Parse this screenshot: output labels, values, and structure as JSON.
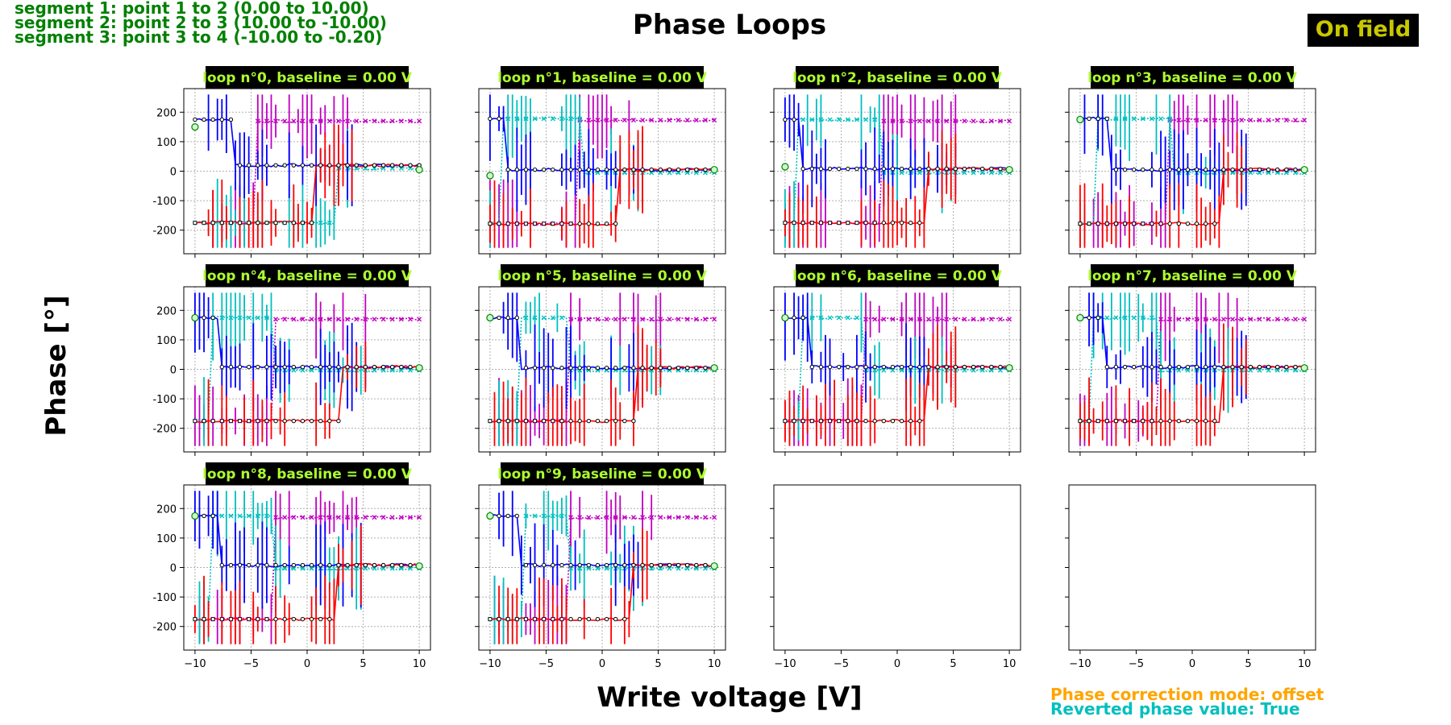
{
  "figure": {
    "title": "Phase Loops",
    "xlabel": "Write voltage [V]",
    "ylabel": "Phase [°]",
    "badge": "On field",
    "segments": [
      "segment 1: point 1 to 2 (0.00 to 10.00)",
      "segment 2: point 2 to 3 (10.00 to -10.00)",
      "segment 3: point 3 to 4 (-10.00 to -0.20)"
    ],
    "footer": [
      "Phase correction mode: offset",
      "Reverted phase value: True"
    ]
  },
  "colors": {
    "segment_text": "#008000",
    "badge_bg": "#000000",
    "badge_text": "#c8c800",
    "subtitle_text": "#adff2f",
    "footer_mode": "#ffa500",
    "footer_revert": "#00bfbf",
    "on_seg1": "#ff0000",
    "on_seg2": "#0000ff",
    "on_seg3": "#0000ff",
    "off_seg1": "#c000c0",
    "off_seg2": "#00bfbf",
    "off_seg3": "#00bfbf",
    "avg_line": "#000080"
  },
  "chart_data": {
    "type": "line",
    "xlim": [
      -11,
      11
    ],
    "ylim": [
      -280,
      280
    ],
    "xticks": [
      -10,
      -5,
      0,
      5,
      10
    ],
    "yticks": [
      200,
      100,
      0,
      -100,
      -200
    ],
    "grid": true,
    "rows": 3,
    "cols": 4,
    "loops": [
      {
        "label": "loop n°0, baseline = 0.00 V",
        "hi": 175,
        "lo": -175,
        "on_up": 0.5,
        "on_down": -6.5,
        "off_up": -4.5,
        "off_down": 2.5,
        "tail_on": 20,
        "tail_off": 10,
        "start": 150
      },
      {
        "label": "loop n°1, baseline = 0.00 V",
        "hi": 178,
        "lo": -178,
        "on_up": 1.5,
        "on_down": -8.5,
        "off_up": -2.0,
        "off_down": -9.0,
        "tail_on": 5,
        "tail_off": -5,
        "start": -15
      },
      {
        "label": "loop n°2, baseline = 0.00 V",
        "hi": 175,
        "lo": -175,
        "on_up": 2.7,
        "on_down": -8.5,
        "off_up": -1.5,
        "off_down": -9.2,
        "tail_on": 8,
        "tail_off": -5,
        "start": 15
      },
      {
        "label": "loop n°3, baseline = 0.00 V",
        "hi": 178,
        "lo": -178,
        "on_up": 2.5,
        "on_down": -7.5,
        "off_up": -2.0,
        "off_down": -8.8,
        "tail_on": 5,
        "tail_off": -5,
        "start": 175
      },
      {
        "label": "loop n°4, baseline = 0.00 V",
        "hi": 175,
        "lo": -175,
        "on_up": 3.0,
        "on_down": -8.0,
        "off_up": -3.0,
        "off_down": -8.5,
        "tail_on": 8,
        "tail_off": -3,
        "start": 175
      },
      {
        "label": "loop n°5, baseline = 0.00 V",
        "hi": 175,
        "lo": -175,
        "on_up": 3.0,
        "on_down": -7.5,
        "off_up": -3.0,
        "off_down": -7.5,
        "tail_on": 5,
        "tail_off": -3,
        "start": 175
      },
      {
        "label": "loop n°6, baseline = 0.00 V",
        "hi": 175,
        "lo": -175,
        "on_up": 2.7,
        "on_down": -8.0,
        "off_up": -3.0,
        "off_down": -8.5,
        "tail_on": 8,
        "tail_off": -3,
        "start": 175
      },
      {
        "label": "loop n°7, baseline = 0.00 V",
        "hi": 175,
        "lo": -175,
        "on_up": 2.5,
        "on_down": -8.0,
        "off_up": -3.0,
        "off_down": -9.0,
        "tail_on": 8,
        "tail_off": -3,
        "start": 175
      },
      {
        "label": "loop n°8, baseline = 0.00 V",
        "hi": 175,
        "lo": -175,
        "on_up": 2.5,
        "on_down": -8.0,
        "off_up": -3.0,
        "off_down": -8.5,
        "tail_on": 8,
        "tail_off": -3,
        "start": 175
      },
      {
        "label": "loop n°9, baseline = 0.00 V",
        "hi": 175,
        "lo": -175,
        "on_up": 2.5,
        "on_down": -7.5,
        "off_up": -3.0,
        "off_down": -7.0,
        "tail_on": 8,
        "tail_off": -3,
        "start": 175
      }
    ]
  }
}
